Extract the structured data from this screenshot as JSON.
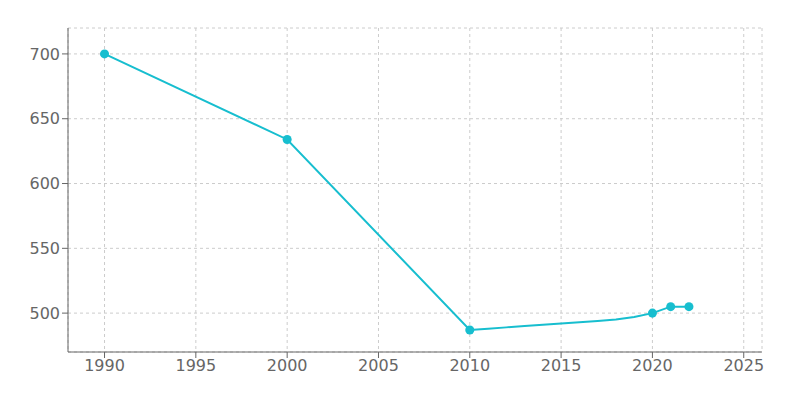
{
  "chart_data": {
    "type": "line",
    "x": [
      1990,
      2000,
      2010,
      2011,
      2012,
      2013,
      2014,
      2015,
      2016,
      2017,
      2018,
      2019,
      2020,
      2021,
      2022
    ],
    "series": [
      {
        "type": "line",
        "color": "#17becf",
        "line_style": "solid",
        "values": [
          700,
          634,
          487,
          488,
          489,
          490,
          491,
          492,
          493,
          494,
          495,
          497,
          500,
          505,
          505
        ]
      },
      {
        "type": "scatter",
        "color": "#17becf",
        "marker": "circle",
        "x": [
          1990,
          2000,
          2010,
          2020,
          2021,
          2022
        ],
        "values": [
          700,
          634,
          487,
          500,
          505,
          505
        ]
      }
    ],
    "xlim": [
      1988,
      2026
    ],
    "ylim": [
      470,
      720
    ],
    "xticks": [
      1990,
      1995,
      2000,
      2005,
      2010,
      2015,
      2020,
      2025
    ],
    "yticks": [
      500,
      550,
      600,
      650,
      700
    ],
    "grid": true
  }
}
